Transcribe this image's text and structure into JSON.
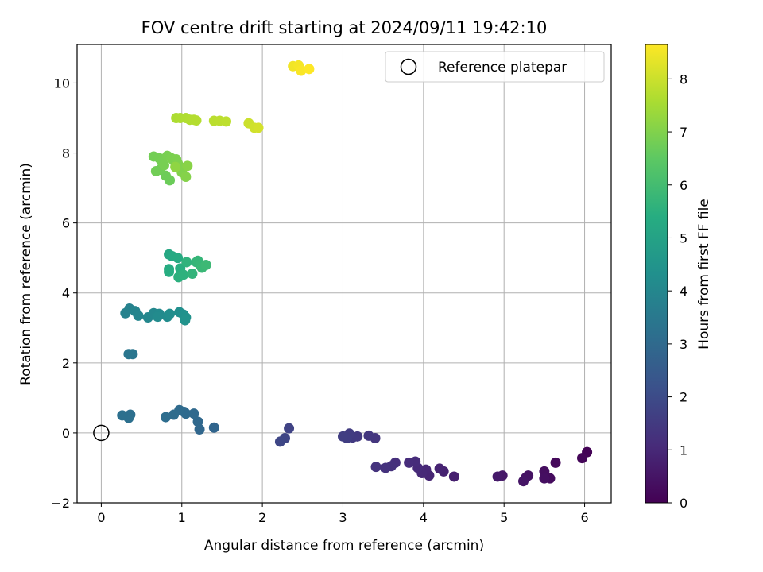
{
  "chart_data": {
    "type": "scatter",
    "title": "FOV centre drift starting at 2024/09/11 19:42:10",
    "xlabel": "Angular distance from reference (arcmin)",
    "ylabel": "Rotation from reference (arcmin)",
    "xlim": [
      -0.3,
      6.33
    ],
    "ylim": [
      -2,
      11.1
    ],
    "xticks": [
      0,
      1,
      2,
      3,
      4,
      5,
      6
    ],
    "yticks": [
      -2,
      0,
      2,
      4,
      6,
      8,
      10
    ],
    "grid": true,
    "legend": {
      "position": "top-right",
      "entries": [
        {
          "label": "Reference platepar",
          "marker": "open-circle"
        }
      ]
    },
    "reference_point": {
      "x": 0,
      "y": 0
    },
    "colorbar": {
      "label": "Hours from first FF file",
      "range": [
        0,
        8.65
      ],
      "ticks": [
        0,
        1,
        2,
        3,
        4,
        5,
        6,
        7,
        8
      ],
      "colormap": "viridis"
    },
    "points": [
      {
        "x": 6.03,
        "y": -0.55,
        "h": 0.05
      },
      {
        "x": 5.97,
        "y": -0.72,
        "h": 0.12
      },
      {
        "x": 5.64,
        "y": -0.85,
        "h": 0.2
      },
      {
        "x": 5.57,
        "y": -1.3,
        "h": 0.28
      },
      {
        "x": 5.5,
        "y": -1.1,
        "h": 0.32
      },
      {
        "x": 5.5,
        "y": -1.3,
        "h": 0.36
      },
      {
        "x": 5.3,
        "y": -1.22,
        "h": 0.42
      },
      {
        "x": 5.27,
        "y": -1.28,
        "h": 0.46
      },
      {
        "x": 5.24,
        "y": -1.38,
        "h": 0.5
      },
      {
        "x": 4.98,
        "y": -1.22,
        "h": 0.58
      },
      {
        "x": 4.92,
        "y": -1.25,
        "h": 0.64
      },
      {
        "x": 4.38,
        "y": -1.25,
        "h": 0.75
      },
      {
        "x": 4.25,
        "y": -1.1,
        "h": 0.82
      },
      {
        "x": 4.2,
        "y": -1.02,
        "h": 0.86
      },
      {
        "x": 4.07,
        "y": -1.22,
        "h": 0.92
      },
      {
        "x": 4.03,
        "y": -1.05,
        "h": 0.96
      },
      {
        "x": 3.98,
        "y": -1.15,
        "h": 1.0
      },
      {
        "x": 3.93,
        "y": -1.0,
        "h": 1.04
      },
      {
        "x": 3.9,
        "y": -0.82,
        "h": 1.08
      },
      {
        "x": 3.82,
        "y": -0.85,
        "h": 1.12
      },
      {
        "x": 3.65,
        "y": -0.85,
        "h": 1.18
      },
      {
        "x": 3.6,
        "y": -0.95,
        "h": 1.22
      },
      {
        "x": 3.53,
        "y": -1.0,
        "h": 1.26
      },
      {
        "x": 3.41,
        "y": -0.97,
        "h": 1.3
      },
      {
        "x": 3.4,
        "y": -0.15,
        "h": 1.36
      },
      {
        "x": 3.32,
        "y": -0.08,
        "h": 1.4
      },
      {
        "x": 3.18,
        "y": -0.1,
        "h": 1.46
      },
      {
        "x": 3.12,
        "y": -0.13,
        "h": 1.5
      },
      {
        "x": 3.08,
        "y": -0.02,
        "h": 1.54
      },
      {
        "x": 3.05,
        "y": -0.15,
        "h": 1.58
      },
      {
        "x": 3.0,
        "y": -0.1,
        "h": 1.62
      },
      {
        "x": 2.33,
        "y": 0.13,
        "h": 1.75
      },
      {
        "x": 2.28,
        "y": -0.15,
        "h": 1.8
      },
      {
        "x": 2.22,
        "y": -0.25,
        "h": 1.85
      },
      {
        "x": 1.4,
        "y": 0.15,
        "h": 2.85
      },
      {
        "x": 1.22,
        "y": 0.1,
        "h": 2.9
      },
      {
        "x": 1.2,
        "y": 0.32,
        "h": 2.95
      },
      {
        "x": 1.15,
        "y": 0.55,
        "h": 2.98
      },
      {
        "x": 1.05,
        "y": 0.55,
        "h": 3.0
      },
      {
        "x": 1.03,
        "y": 0.6,
        "h": 3.02
      },
      {
        "x": 0.97,
        "y": 0.65,
        "h": 3.04
      },
      {
        "x": 0.9,
        "y": 0.52,
        "h": 3.06
      },
      {
        "x": 0.8,
        "y": 0.45,
        "h": 3.1
      },
      {
        "x": 0.36,
        "y": 0.52,
        "h": 3.18
      },
      {
        "x": 0.34,
        "y": 0.43,
        "h": 3.2
      },
      {
        "x": 0.26,
        "y": 0.5,
        "h": 3.22
      },
      {
        "x": 0.39,
        "y": 2.25,
        "h": 3.4
      },
      {
        "x": 0.34,
        "y": 2.25,
        "h": 3.42
      },
      {
        "x": 0.35,
        "y": 3.55,
        "h": 3.8
      },
      {
        "x": 0.3,
        "y": 3.42,
        "h": 3.85
      },
      {
        "x": 0.42,
        "y": 3.48,
        "h": 3.9
      },
      {
        "x": 0.46,
        "y": 3.35,
        "h": 3.95
      },
      {
        "x": 0.58,
        "y": 3.3,
        "h": 4.0
      },
      {
        "x": 0.65,
        "y": 3.42,
        "h": 4.05
      },
      {
        "x": 0.72,
        "y": 3.4,
        "h": 4.1
      },
      {
        "x": 0.7,
        "y": 3.32,
        "h": 4.15
      },
      {
        "x": 0.82,
        "y": 3.32,
        "h": 4.2
      },
      {
        "x": 0.85,
        "y": 3.4,
        "h": 4.25
      },
      {
        "x": 0.97,
        "y": 3.45,
        "h": 4.3
      },
      {
        "x": 1.02,
        "y": 3.38,
        "h": 4.35
      },
      {
        "x": 1.05,
        "y": 3.3,
        "h": 4.4
      },
      {
        "x": 1.04,
        "y": 3.22,
        "h": 4.45
      },
      {
        "x": 0.84,
        "y": 5.1,
        "h": 5.2
      },
      {
        "x": 0.88,
        "y": 5.05,
        "h": 5.25
      },
      {
        "x": 0.95,
        "y": 5.0,
        "h": 5.3
      },
      {
        "x": 0.84,
        "y": 4.68,
        "h": 5.35
      },
      {
        "x": 0.84,
        "y": 4.6,
        "h": 5.4
      },
      {
        "x": 0.98,
        "y": 4.7,
        "h": 5.45
      },
      {
        "x": 0.96,
        "y": 4.45,
        "h": 5.5
      },
      {
        "x": 1.02,
        "y": 4.52,
        "h": 5.55
      },
      {
        "x": 1.06,
        "y": 4.88,
        "h": 5.6
      },
      {
        "x": 1.13,
        "y": 4.55,
        "h": 5.65
      },
      {
        "x": 1.18,
        "y": 4.88,
        "h": 5.7
      },
      {
        "x": 1.2,
        "y": 4.92,
        "h": 5.72
      },
      {
        "x": 1.23,
        "y": 4.8,
        "h": 5.75
      },
      {
        "x": 1.25,
        "y": 4.72,
        "h": 5.8
      },
      {
        "x": 1.3,
        "y": 4.8,
        "h": 5.85
      },
      {
        "x": 0.85,
        "y": 7.22,
        "h": 6.7
      },
      {
        "x": 0.8,
        "y": 7.35,
        "h": 6.72
      },
      {
        "x": 0.73,
        "y": 7.52,
        "h": 6.75
      },
      {
        "x": 0.68,
        "y": 7.48,
        "h": 6.78
      },
      {
        "x": 0.65,
        "y": 7.9,
        "h": 6.8
      },
      {
        "x": 0.72,
        "y": 7.85,
        "h": 6.82
      },
      {
        "x": 0.75,
        "y": 7.75,
        "h": 6.84
      },
      {
        "x": 0.78,
        "y": 7.65,
        "h": 6.86
      },
      {
        "x": 0.82,
        "y": 7.92,
        "h": 6.88
      },
      {
        "x": 0.87,
        "y": 7.85,
        "h": 6.9
      },
      {
        "x": 0.9,
        "y": 7.78,
        "h": 6.92
      },
      {
        "x": 0.93,
        "y": 7.82,
        "h": 6.94
      },
      {
        "x": 0.95,
        "y": 7.7,
        "h": 6.96
      },
      {
        "x": 0.98,
        "y": 7.6,
        "h": 6.98
      },
      {
        "x": 1.0,
        "y": 7.45,
        "h": 7.0
      },
      {
        "x": 1.05,
        "y": 7.32,
        "h": 7.05
      },
      {
        "x": 1.07,
        "y": 7.63,
        "h": 7.1
      },
      {
        "x": 0.92,
        "y": 7.6,
        "h": 7.2
      },
      {
        "x": 0.93,
        "y": 9.0,
        "h": 7.6
      },
      {
        "x": 0.98,
        "y": 9.0,
        "h": 7.62
      },
      {
        "x": 1.05,
        "y": 9.0,
        "h": 7.64
      },
      {
        "x": 1.1,
        "y": 8.95,
        "h": 7.66
      },
      {
        "x": 1.15,
        "y": 8.95,
        "h": 7.68
      },
      {
        "x": 1.18,
        "y": 8.93,
        "h": 7.7
      },
      {
        "x": 1.4,
        "y": 8.92,
        "h": 7.78
      },
      {
        "x": 1.47,
        "y": 8.92,
        "h": 7.8
      },
      {
        "x": 1.55,
        "y": 8.9,
        "h": 7.82
      },
      {
        "x": 1.83,
        "y": 8.85,
        "h": 8.0
      },
      {
        "x": 1.9,
        "y": 8.72,
        "h": 8.05
      },
      {
        "x": 1.95,
        "y": 8.72,
        "h": 8.1
      },
      {
        "x": 2.38,
        "y": 10.48,
        "h": 8.5
      },
      {
        "x": 2.45,
        "y": 10.5,
        "h": 8.55
      },
      {
        "x": 2.48,
        "y": 10.35,
        "h": 8.6
      },
      {
        "x": 2.58,
        "y": 10.4,
        "h": 8.65
      }
    ]
  }
}
